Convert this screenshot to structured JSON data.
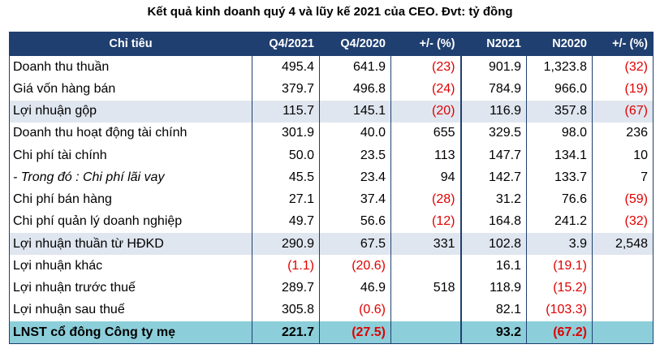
{
  "title": "Kết quả kinh doanh quý 4 và lũy kế 2021 của CEO. Đvt: tỷ đồng",
  "columns": [
    "Chỉ tiêu",
    "Q4/2021",
    "Q4/2020",
    "+/- (%)",
    "N2021",
    "N2020",
    "+/- (%)"
  ],
  "rows": [
    {
      "label": "Doanh thu thuần",
      "style": "normal",
      "cells": [
        "495.4",
        "641.9",
        "(23)",
        "901.9",
        "1,323.8",
        "(32)"
      ]
    },
    {
      "label": "Giá vốn hàng bán",
      "style": "normal",
      "cells": [
        "379.7",
        "496.8",
        "(24)",
        "784.9",
        "966.0",
        "(19)"
      ]
    },
    {
      "label": "Lợi nhuận gộp",
      "style": "highlight",
      "cells": [
        "115.7",
        "145.1",
        "(20)",
        "116.9",
        "357.8",
        "(67)"
      ]
    },
    {
      "label": "Doanh thu hoạt động tài chính",
      "style": "normal",
      "cells": [
        "301.9",
        "40.0",
        "655",
        "329.5",
        "98.0",
        "236"
      ]
    },
    {
      "label": "Chi phí tài chính",
      "style": "normal",
      "cells": [
        "50.0",
        "23.5",
        "113",
        "147.7",
        "134.1",
        "10"
      ]
    },
    {
      "label": "- Trong đó : Chi phí lãi vay",
      "style": "italic",
      "cells": [
        "45.5",
        "23.4",
        "94",
        "142.7",
        "133.7",
        "7"
      ]
    },
    {
      "label": "Chi phí bán hàng",
      "style": "normal",
      "cells": [
        "27.1",
        "37.4",
        "(28)",
        "31.2",
        "76.6",
        "(59)"
      ]
    },
    {
      "label": "Chi phí quản lý doanh nghiệp",
      "style": "normal",
      "cells": [
        "49.7",
        "56.6",
        "(12)",
        "164.8",
        "241.2",
        "(32)"
      ]
    },
    {
      "label": "Lợi nhuận thuần từ HĐKD",
      "style": "highlight",
      "cells": [
        "290.9",
        "67.5",
        "331",
        "102.8",
        "3.9",
        "2,548"
      ]
    },
    {
      "label": "Lợi nhuận khác",
      "style": "normal",
      "cells": [
        "(1.1)",
        "(20.6)",
        "",
        "16.1",
        "(19.1)",
        ""
      ]
    },
    {
      "label": "Lợi nhuận trước thuế",
      "style": "normal",
      "cells": [
        "289.7",
        "46.9",
        "518",
        "118.9",
        "(15.2)",
        ""
      ]
    },
    {
      "label": "Lợi nhuận sau thuế",
      "style": "normal",
      "cells": [
        "305.8",
        "(0.6)",
        "",
        "82.1",
        "(103.3)",
        ""
      ]
    },
    {
      "label": "LNST cổ đông Công ty mẹ",
      "style": "total",
      "cells": [
        "221.7",
        "(27.5)",
        "",
        "93.2",
        "(67.2)",
        ""
      ]
    }
  ],
  "colors": {
    "header_bg": "#1f3f70",
    "highlight_bg": "#dfe6ef",
    "total_bg": "#8ccfda",
    "negative": "#e00000"
  }
}
